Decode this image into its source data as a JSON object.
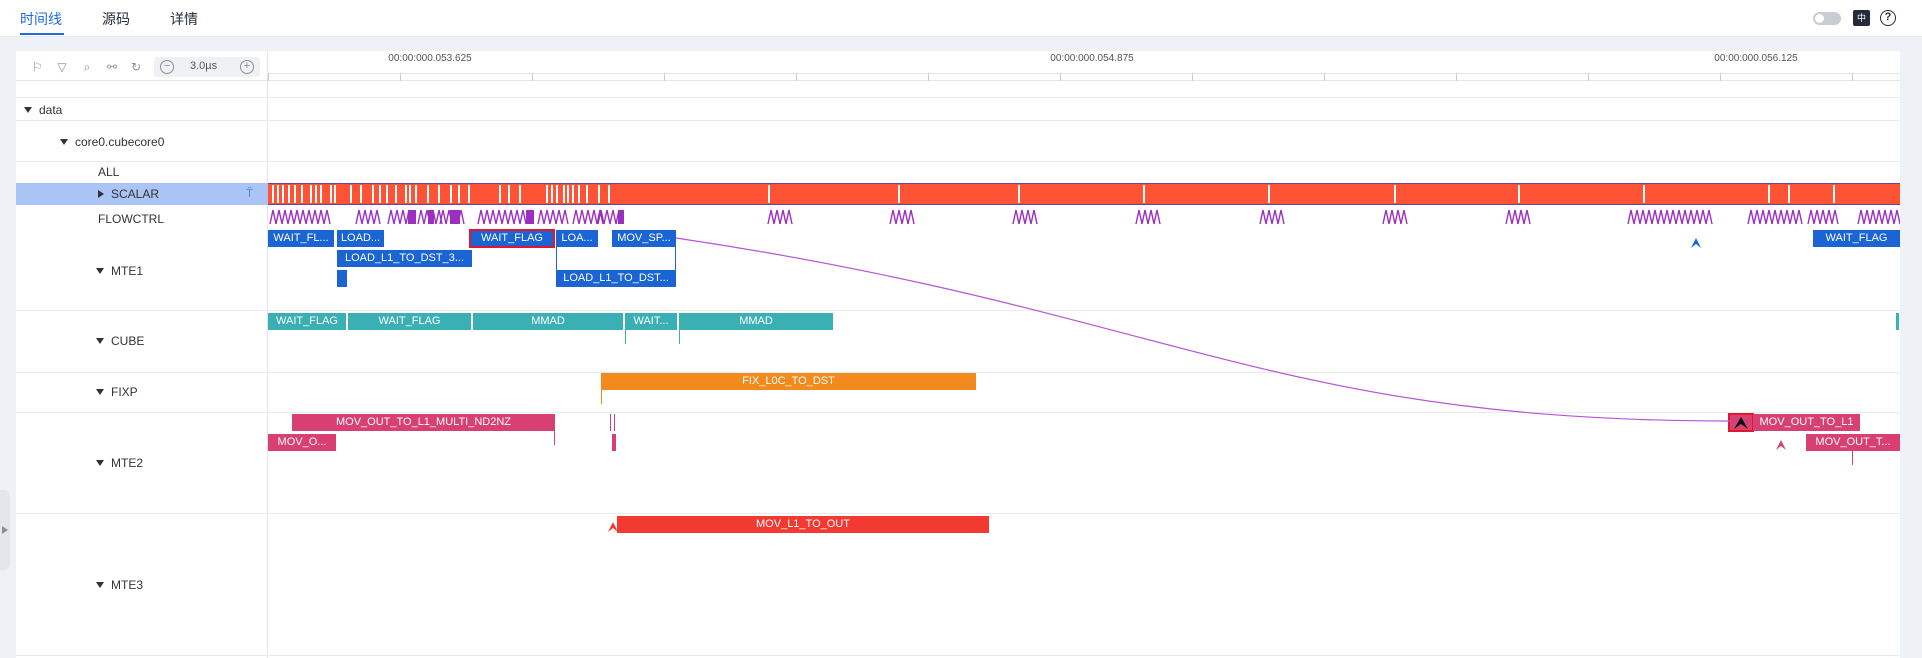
{
  "tabs": [
    {
      "label": "时间线",
      "active": true
    },
    {
      "label": "源码",
      "active": false
    },
    {
      "label": "详情",
      "active": false
    }
  ],
  "header_icons": {
    "lang": "中",
    "help": "?"
  },
  "toolbar": {
    "icons": [
      "flag-icon",
      "filter-icon",
      "search-icon",
      "link-icon",
      "reset-icon"
    ],
    "zoom_value": "3.0µs",
    "zoom_minus": "−",
    "zoom_plus": "+"
  },
  "ruler": {
    "ticks": [
      "00:00:000.053.625",
      "00:00:000.054.875",
      "00:00:000.056.125"
    ]
  },
  "tree": {
    "data": "data",
    "core": "core0.cubecore0",
    "rows": {
      "all": "ALL",
      "scalar": "SCALAR",
      "flowctrl": "FLOWCTRL",
      "mte1": "MTE1",
      "cube": "CUBE",
      "fixp": "FIXP",
      "mte2": "MTE2",
      "mte3": "MTE3"
    }
  },
  "colors": {
    "scalar": "#ff5335",
    "flowctrl": "#9b2fc0",
    "mte1": "#1a64d4",
    "cube": "#3ab0b5",
    "fixp": "#f28a1e",
    "mte2": "#d83f72",
    "mte3": "#f33a32",
    "flow_line": "#b655d6"
  },
  "slices": {
    "mte1": [
      "WAIT_FL...",
      "LOAD...",
      "LOAD_L1_TO_DST_3...",
      "WAIT_FLAG",
      "LOA...",
      "MOV_SP...",
      "LOAD_L1_TO_DST...",
      "WAIT_FLAG"
    ],
    "cube": [
      "WAIT_FLAG",
      "WAIT_FLAG",
      "MMAD",
      "WAIT...",
      "MMAD"
    ],
    "fixp": [
      "FIX_L0C_TO_DST"
    ],
    "mte2": [
      "MOV_OUT_TO_L1_MULTI_ND2NZ",
      "MOV_O...",
      "MOV_OUT_TO_L1",
      "MOV_OUT_T..."
    ],
    "mte3": [
      "MOV_L1_TO_OUT"
    ]
  }
}
